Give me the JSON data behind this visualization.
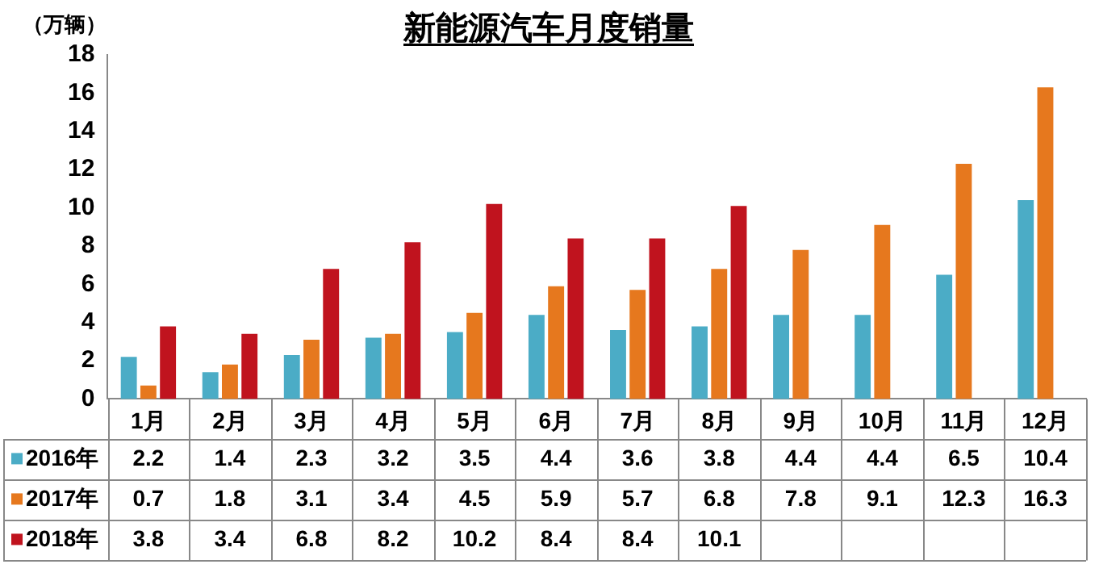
{
  "chart_data": {
    "type": "bar",
    "title": "新能源汽车月度销量",
    "ylabel": "（万辆）",
    "categories": [
      "1月",
      "2月",
      "3月",
      "4月",
      "5月",
      "6月",
      "7月",
      "8月",
      "9月",
      "10月",
      "11月",
      "12月"
    ],
    "series": [
      {
        "name": "2016年",
        "color": "#4bacc6",
        "values": [
          2.2,
          1.4,
          2.3,
          3.2,
          3.5,
          4.4,
          3.6,
          3.8,
          4.4,
          4.4,
          6.5,
          10.4
        ]
      },
      {
        "name": "2017年",
        "color": "#e6781e",
        "values": [
          0.7,
          1.8,
          3.1,
          3.4,
          4.5,
          5.9,
          5.7,
          6.8,
          7.8,
          9.1,
          12.3,
          16.3
        ]
      },
      {
        "name": "2018年",
        "color": "#c0131e",
        "values": [
          3.8,
          3.4,
          6.8,
          8.2,
          10.2,
          8.4,
          8.4,
          10.1,
          null,
          null,
          null,
          null
        ]
      }
    ],
    "ylim": [
      0,
      18
    ],
    "yticks": [
      0,
      2,
      4,
      6,
      8,
      10,
      12,
      14,
      16,
      18
    ],
    "grid": false,
    "legend": "bottom",
    "data_labels": true
  }
}
